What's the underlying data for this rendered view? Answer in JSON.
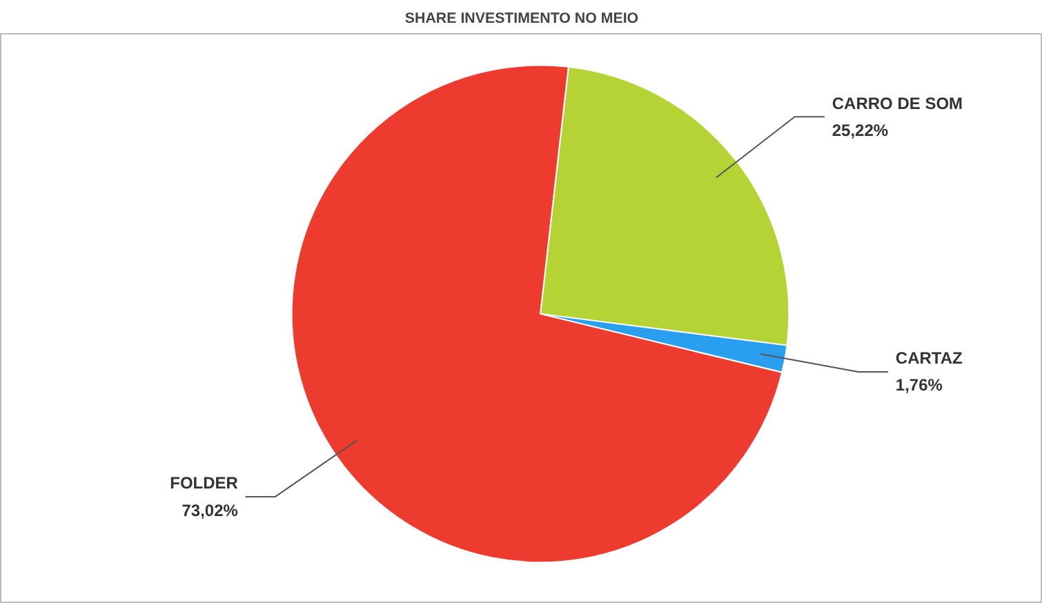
{
  "chart_data": {
    "type": "pie",
    "title": "SHARE INVESTIMENTO NO MEIO",
    "categories": [
      "CARRO DE SOM",
      "CARTAZ",
      "FOLDER"
    ],
    "values": [
      25.22,
      1.76,
      73.02
    ],
    "colors": [
      "#b5d334",
      "#2a9ff0",
      "#ee3b2f"
    ],
    "value_labels": [
      "25,22%",
      "1,76%",
      "73,02%"
    ]
  }
}
